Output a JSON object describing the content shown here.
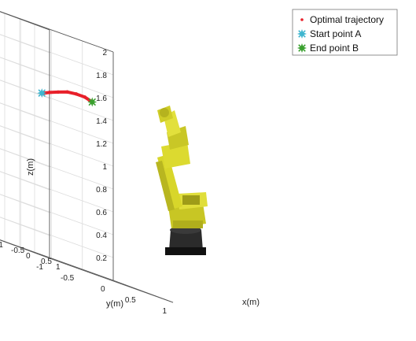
{
  "chart_data": {
    "type": "line",
    "projection": "3d",
    "title": "",
    "xlabel": "x(m)",
    "ylabel": "y(m)",
    "zlabel": "z(m)",
    "xlim": [
      -1,
      1
    ],
    "ylim": [
      -1,
      1
    ],
    "zlim": [
      0,
      2
    ],
    "x_ticks": [
      "-1",
      "-0.5",
      "0",
      "0.5",
      "1"
    ],
    "y_ticks": [
      "-1",
      "-0.5",
      "0",
      "0.5",
      "1"
    ],
    "z_ticks": [
      "0.2",
      "0.4",
      "0.6",
      "0.8",
      "1",
      "1.2",
      "1.4",
      "1.6",
      "1.8",
      "2"
    ],
    "grid": true,
    "legend_position": "top-right",
    "series": [
      {
        "name": "Optimal trajectory",
        "color": "#e8202a",
        "marker": "dot",
        "points": [
          {
            "x": 0.3,
            "y": 0.03,
            "z": 1.5
          },
          {
            "x": 0.28,
            "y": -0.08,
            "z": 1.52
          },
          {
            "x": 0.24,
            "y": -0.2,
            "z": 1.52
          },
          {
            "x": 0.19,
            "y": -0.32,
            "z": 1.51
          },
          {
            "x": 0.13,
            "y": -0.44,
            "z": 1.48
          },
          {
            "x": 0.07,
            "y": -0.55,
            "z": 1.45
          },
          {
            "x": 0.0,
            "y": -0.63,
            "z": 1.42
          }
        ]
      },
      {
        "name": "Start point A",
        "color": "#3fb6cf",
        "marker": "star",
        "points": [
          {
            "x": 0.0,
            "y": -0.64,
            "z": 1.42
          }
        ]
      },
      {
        "name": "End point B",
        "color": "#3aa02f",
        "marker": "star",
        "points": [
          {
            "x": 0.3,
            "y": 0.03,
            "z": 1.5
          }
        ]
      }
    ],
    "robot": {
      "description_icon": "industrial-robot-arm",
      "body_color": "#d8d62a",
      "base_color": "#1c1c1c"
    }
  }
}
